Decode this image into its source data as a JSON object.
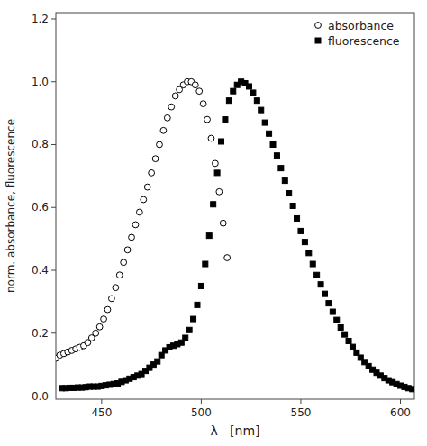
{
  "chart_data": {
    "type": "scatter",
    "xlabel": "λ   [nm]",
    "ylabel": "norm. absorbance, fluorescence",
    "xlim": [
      427,
      607
    ],
    "ylim": [
      -0.01,
      1.22
    ],
    "xticks": [
      450,
      500,
      550,
      600
    ],
    "yticks": [
      {
        "value": 0,
        "label": "0.0"
      },
      0.2,
      0.4,
      0.6,
      0.8,
      {
        "value": 1.0,
        "label": "1.0"
      },
      1.2
    ],
    "grid": false,
    "legend": "upper right",
    "series": [
      {
        "name": "absorbance",
        "color": "#000000",
        "marker": "open-circle",
        "x": [
          427,
          429,
          431,
          433,
          435,
          437,
          439,
          441,
          443,
          445,
          447,
          449,
          451,
          453,
          455,
          457,
          459,
          461,
          463,
          465,
          467,
          469,
          471,
          473,
          475,
          477,
          479,
          481,
          483,
          485,
          487,
          489,
          491,
          493,
          495,
          497,
          499,
          501,
          503,
          505,
          507,
          509,
          511,
          513
        ],
        "values": [
          0.12,
          0.13,
          0.135,
          0.14,
          0.145,
          0.15,
          0.155,
          0.16,
          0.17,
          0.185,
          0.2,
          0.22,
          0.245,
          0.275,
          0.31,
          0.345,
          0.385,
          0.425,
          0.465,
          0.505,
          0.545,
          0.585,
          0.625,
          0.665,
          0.71,
          0.755,
          0.8,
          0.845,
          0.885,
          0.92,
          0.955,
          0.975,
          0.99,
          1.0,
          1.0,
          0.99,
          0.97,
          0.93,
          0.88,
          0.82,
          0.74,
          0.65,
          0.55,
          0.44
        ]
      },
      {
        "name": "fluorescence",
        "color": "#000000",
        "marker": "square",
        "x": [
          430,
          432,
          434,
          436,
          438,
          440,
          442,
          444,
          446,
          448,
          450,
          452,
          454,
          456,
          458,
          460,
          462,
          464,
          466,
          468,
          470,
          472,
          474,
          476,
          478,
          480,
          482,
          484,
          486,
          488,
          490,
          492,
          494,
          496,
          498,
          500,
          502,
          504,
          506,
          508,
          510,
          512,
          514,
          516,
          518,
          520,
          522,
          524,
          526,
          528,
          530,
          532,
          534,
          536,
          538,
          540,
          542,
          544,
          546,
          548,
          550,
          552,
          554,
          556,
          558,
          560,
          562,
          564,
          566,
          568,
          570,
          572,
          574,
          576,
          578,
          580,
          582,
          584,
          586,
          588,
          590,
          592,
          594,
          596,
          598,
          600,
          602,
          604,
          606
        ],
        "values": [
          0.025,
          0.025,
          0.026,
          0.026,
          0.027,
          0.027,
          0.028,
          0.03,
          0.03,
          0.03,
          0.032,
          0.034,
          0.036,
          0.038,
          0.04,
          0.045,
          0.05,
          0.055,
          0.06,
          0.065,
          0.07,
          0.08,
          0.09,
          0.1,
          0.11,
          0.13,
          0.145,
          0.155,
          0.16,
          0.165,
          0.17,
          0.185,
          0.21,
          0.245,
          0.29,
          0.35,
          0.42,
          0.51,
          0.61,
          0.71,
          0.81,
          0.88,
          0.94,
          0.97,
          0.99,
          1.0,
          0.995,
          0.985,
          0.965,
          0.94,
          0.91,
          0.87,
          0.835,
          0.8,
          0.765,
          0.725,
          0.685,
          0.645,
          0.605,
          0.565,
          0.525,
          0.49,
          0.455,
          0.42,
          0.385,
          0.355,
          0.325,
          0.295,
          0.268,
          0.242,
          0.218,
          0.196,
          0.175,
          0.156,
          0.138,
          0.122,
          0.108,
          0.095,
          0.084,
          0.074,
          0.065,
          0.057,
          0.05,
          0.044,
          0.038,
          0.033,
          0.029,
          0.025,
          0.022
        ]
      }
    ]
  }
}
